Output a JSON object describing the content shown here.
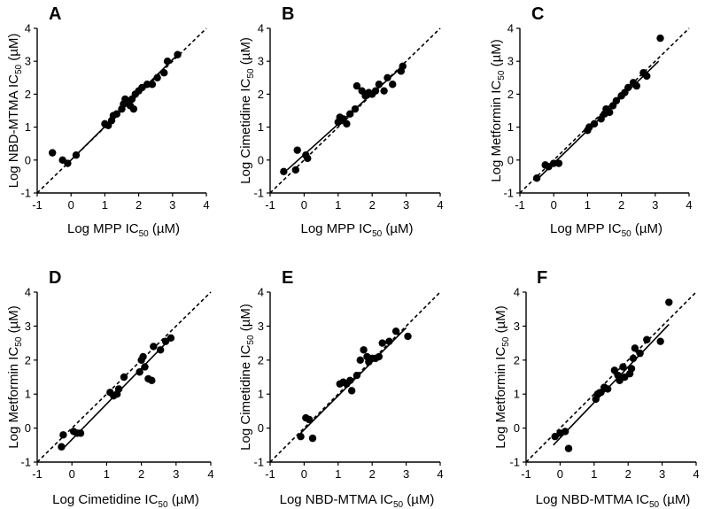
{
  "chart_data": [
    {
      "type": "scatter",
      "panel": "A",
      "xlabel": "Log MPP IC50 (µM)",
      "ylabel": "Log NBD-MTMA IC50 (µM)",
      "xlabel_main": "Log MPP IC",
      "xlabel_sub": "50",
      "xlabel_unit": " (µM)",
      "ylabel_main": "Log NBD-MTMA IC",
      "ylabel_sub": "50",
      "ylabel_unit": " (µM)",
      "xlim": [
        -1,
        4
      ],
      "ylim": [
        -1,
        4
      ],
      "xticks": [
        "-1",
        "0",
        "1",
        "2",
        "3",
        "4"
      ],
      "yticks": [
        "-1",
        "0",
        "1",
        "2",
        "3",
        "4"
      ],
      "fit": {
        "x": [
          -0.1,
          3.1
        ],
        "y": [
          -0.1,
          3.15
        ]
      },
      "identity": true,
      "points": [
        [
          -0.55,
          0.22
        ],
        [
          -0.25,
          0.0
        ],
        [
          -0.1,
          -0.1
        ],
        [
          0.15,
          0.15
        ],
        [
          1.0,
          1.1
        ],
        [
          1.1,
          1.05
        ],
        [
          1.2,
          1.2
        ],
        [
          1.25,
          1.35
        ],
        [
          1.35,
          1.4
        ],
        [
          1.5,
          1.55
        ],
        [
          1.55,
          1.7
        ],
        [
          1.6,
          1.85
        ],
        [
          1.7,
          1.75
        ],
        [
          1.75,
          1.65
        ],
        [
          1.8,
          1.85
        ],
        [
          1.85,
          1.55
        ],
        [
          1.9,
          2.0
        ],
        [
          2.0,
          2.1
        ],
        [
          2.1,
          2.2
        ],
        [
          2.25,
          2.3
        ],
        [
          2.4,
          2.3
        ],
        [
          2.55,
          2.5
        ],
        [
          2.75,
          2.65
        ],
        [
          2.85,
          3.0
        ],
        [
          3.15,
          3.2
        ]
      ]
    },
    {
      "type": "scatter",
      "panel": "B",
      "xlabel": "Log MPP IC50 (µM)",
      "ylabel": "Log Cimetidine IC50 (µM)",
      "xlabel_main": "Log MPP IC",
      "xlabel_sub": "50",
      "xlabel_unit": " (µM)",
      "ylabel_main": "Log Cimetidine IC",
      "ylabel_sub": "50",
      "ylabel_unit": " (µM)",
      "xlim": [
        -1,
        4
      ],
      "ylim": [
        -1,
        4
      ],
      "xticks": [
        "-1",
        "0",
        "1",
        "2",
        "3",
        "4"
      ],
      "yticks": [
        "-1",
        "0",
        "1",
        "2",
        "3",
        "4"
      ],
      "fit": {
        "x": [
          -0.5,
          2.9
        ],
        "y": [
          -0.3,
          2.85
        ]
      },
      "identity": true,
      "points": [
        [
          -0.6,
          -0.35
        ],
        [
          -0.25,
          -0.3
        ],
        [
          -0.2,
          0.3
        ],
        [
          0.05,
          0.15
        ],
        [
          0.1,
          0.05
        ],
        [
          1.0,
          1.15
        ],
        [
          1.05,
          1.3
        ],
        [
          1.15,
          1.25
        ],
        [
          1.25,
          1.1
        ],
        [
          1.35,
          1.4
        ],
        [
          1.5,
          1.55
        ],
        [
          1.55,
          2.25
        ],
        [
          1.7,
          2.1
        ],
        [
          1.8,
          1.95
        ],
        [
          1.9,
          2.05
        ],
        [
          2.0,
          2.0
        ],
        [
          2.1,
          2.1
        ],
        [
          2.2,
          2.3
        ],
        [
          2.35,
          2.1
        ],
        [
          2.45,
          2.5
        ],
        [
          2.6,
          2.3
        ],
        [
          2.85,
          2.7
        ],
        [
          2.9,
          2.85
        ]
      ]
    },
    {
      "type": "scatter",
      "panel": "C",
      "xlabel": "Log MPP IC50 (µM)",
      "ylabel": "Log Metformin IC50 (µM)",
      "xlabel_main": "Log MPP IC",
      "xlabel_sub": "50",
      "xlabel_unit": " (µM)",
      "ylabel_main": "Log Metformin IC",
      "ylabel_sub": "50",
      "ylabel_unit": " (µM)",
      "xlim": [
        -1,
        4
      ],
      "ylim": [
        -1,
        4
      ],
      "xticks": [
        "-1",
        "0",
        "1",
        "2",
        "3",
        "4"
      ],
      "yticks": [
        "-1",
        "0",
        "1",
        "2",
        "3",
        "4"
      ],
      "fit": {
        "x": [
          -0.5,
          3.1
        ],
        "y": [
          -0.6,
          3.0
        ]
      },
      "identity": true,
      "points": [
        [
          -0.5,
          -0.55
        ],
        [
          -0.25,
          -0.15
        ],
        [
          -0.15,
          -0.2
        ],
        [
          0.0,
          -0.1
        ],
        [
          0.15,
          -0.1
        ],
        [
          1.0,
          0.9
        ],
        [
          1.05,
          1.0
        ],
        [
          1.2,
          1.1
        ],
        [
          1.4,
          1.25
        ],
        [
          1.5,
          1.4
        ],
        [
          1.55,
          1.55
        ],
        [
          1.65,
          1.45
        ],
        [
          1.75,
          1.65
        ],
        [
          1.85,
          1.8
        ],
        [
          2.0,
          1.95
        ],
        [
          2.1,
          2.05
        ],
        [
          2.2,
          2.2
        ],
        [
          2.35,
          2.35
        ],
        [
          2.45,
          2.25
        ],
        [
          2.65,
          2.65
        ],
        [
          2.75,
          2.55
        ],
        [
          3.15,
          3.7
        ]
      ]
    },
    {
      "type": "scatter",
      "panel": "D",
      "xlabel": "Log Cimetidine IC50 (µM)",
      "ylabel": "Log Metformin IC50 (µM)",
      "xlabel_main": "Log Cimetidine IC",
      "xlabel_sub": "50",
      "xlabel_unit": " (µM)",
      "ylabel_main": "Log Metformin IC",
      "ylabel_sub": "50",
      "ylabel_unit": " (µM)",
      "xlim": [
        -1,
        4
      ],
      "ylim": [
        -1,
        4
      ],
      "xticks": [
        "-1",
        "0",
        "1",
        "2",
        "3",
        "4"
      ],
      "yticks": [
        "-1",
        "0",
        "1",
        "2",
        "3",
        "4"
      ],
      "fit": {
        "x": [
          -0.3,
          2.9
        ],
        "y": [
          -0.65,
          2.7
        ]
      },
      "identity": true,
      "points": [
        [
          -0.3,
          -0.55
        ],
        [
          -0.25,
          -0.2
        ],
        [
          0.05,
          -0.1
        ],
        [
          0.15,
          -0.15
        ],
        [
          0.25,
          -0.15
        ],
        [
          1.1,
          1.05
        ],
        [
          1.2,
          0.95
        ],
        [
          1.3,
          1.0
        ],
        [
          1.35,
          1.15
        ],
        [
          1.5,
          1.5
        ],
        [
          1.95,
          1.65
        ],
        [
          2.0,
          2.0
        ],
        [
          2.05,
          2.1
        ],
        [
          2.1,
          1.8
        ],
        [
          2.2,
          1.45
        ],
        [
          2.3,
          1.4
        ],
        [
          2.35,
          2.4
        ],
        [
          2.55,
          2.3
        ],
        [
          2.7,
          2.55
        ],
        [
          2.85,
          2.65
        ]
      ]
    },
    {
      "type": "scatter",
      "panel": "E",
      "xlabel": "Log NBD-MTMA IC50 (µM)",
      "ylabel": "Log Cimetidine IC50 (µM)",
      "xlabel_main": "Log NBD-MTMA IC",
      "xlabel_sub": "50",
      "xlabel_unit": " (µM)",
      "ylabel_main": "Log Cimetidine IC",
      "ylabel_sub": "50",
      "ylabel_unit": " (µM)",
      "xlim": [
        -1,
        4
      ],
      "ylim": [
        -1,
        4
      ],
      "xticks": [
        "-1",
        "0",
        "1",
        "2",
        "3",
        "4"
      ],
      "yticks": [
        "-1",
        "0",
        "1",
        "2",
        "3",
        "4"
      ],
      "fit": {
        "x": [
          -0.1,
          3.0
        ],
        "y": [
          -0.15,
          2.95
        ]
      },
      "identity": true,
      "points": [
        [
          -0.1,
          -0.25
        ],
        [
          0.05,
          0.3
        ],
        [
          0.15,
          0.25
        ],
        [
          0.25,
          -0.3
        ],
        [
          1.05,
          1.3
        ],
        [
          1.15,
          1.35
        ],
        [
          1.25,
          1.3
        ],
        [
          1.35,
          1.4
        ],
        [
          1.4,
          1.1
        ],
        [
          1.55,
          1.55
        ],
        [
          1.65,
          2.0
        ],
        [
          1.75,
          2.3
        ],
        [
          1.85,
          2.1
        ],
        [
          1.9,
          1.95
        ],
        [
          2.0,
          2.05
        ],
        [
          2.1,
          2.05
        ],
        [
          2.2,
          2.1
        ],
        [
          2.3,
          2.5
        ],
        [
          2.5,
          2.55
        ],
        [
          2.7,
          2.85
        ],
        [
          3.05,
          2.7
        ]
      ]
    },
    {
      "type": "scatter",
      "panel": "F",
      "xlabel": "Log NBD-MTMA IC50 (µM)",
      "ylabel": "Log Metformin IC50 (µM)",
      "xlabel_main": "Log NBD-MTMA IC",
      "xlabel_sub": "50",
      "xlabel_unit": " (µM)",
      "ylabel_main": "Log Metformin IC",
      "ylabel_sub": "50",
      "ylabel_unit": " (µM)",
      "xlim": [
        -1,
        4
      ],
      "ylim": [
        -1,
        4
      ],
      "xticks": [
        "-1",
        "0",
        "1",
        "2",
        "3",
        "4"
      ],
      "yticks": [
        "-1",
        "0",
        "1",
        "2",
        "3",
        "4"
      ],
      "fit": {
        "x": [
          -0.2,
          3.2
        ],
        "y": [
          -0.5,
          3.05
        ]
      },
      "identity": true,
      "points": [
        [
          -0.15,
          -0.25
        ],
        [
          0.0,
          -0.15
        ],
        [
          0.15,
          -0.1
        ],
        [
          0.25,
          -0.6
        ],
        [
          1.05,
          0.85
        ],
        [
          1.1,
          1.0
        ],
        [
          1.2,
          1.05
        ],
        [
          1.3,
          1.2
        ],
        [
          1.4,
          1.15
        ],
        [
          1.6,
          1.7
        ],
        [
          1.7,
          1.55
        ],
        [
          1.75,
          1.4
        ],
        [
          1.85,
          1.8
        ],
        [
          1.9,
          1.5
        ],
        [
          2.05,
          1.6
        ],
        [
          2.1,
          1.75
        ],
        [
          2.15,
          2.05
        ],
        [
          2.2,
          2.35
        ],
        [
          2.35,
          2.2
        ],
        [
          2.55,
          2.6
        ],
        [
          2.95,
          2.55
        ],
        [
          3.2,
          3.7
        ]
      ]
    }
  ]
}
